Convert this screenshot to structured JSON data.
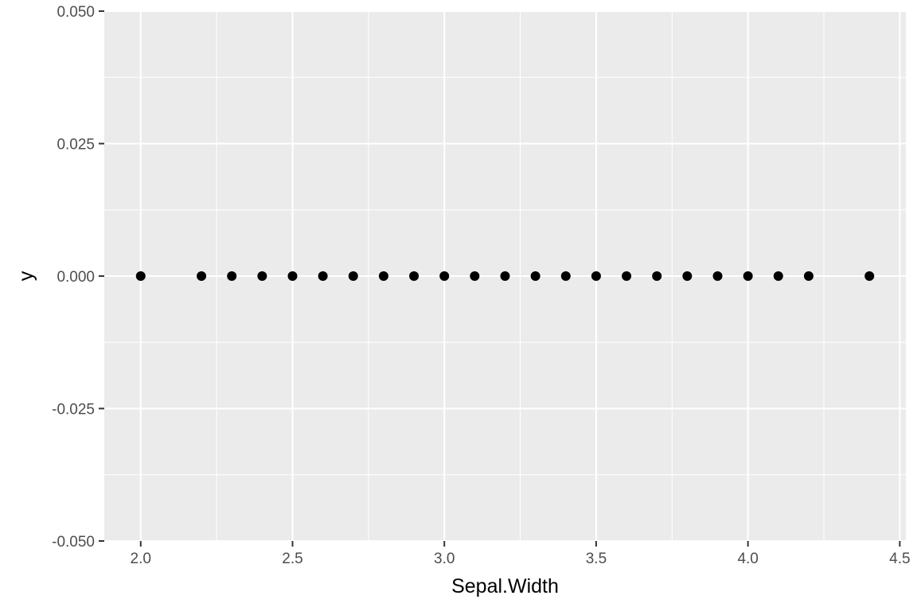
{
  "chart_data": {
    "type": "scatter",
    "xlabel": "Sepal.Width",
    "ylabel": "y",
    "xlim": [
      1.88,
      4.52
    ],
    "ylim": [
      -0.05,
      0.05
    ],
    "x_ticks": [
      2.0,
      2.5,
      3.0,
      3.5,
      4.0,
      4.5
    ],
    "x_tick_labels": [
      "2.0",
      "2.5",
      "3.0",
      "3.5",
      "4.0",
      "4.5"
    ],
    "y_ticks": [
      0.05,
      0.025,
      0.0,
      -0.025,
      -0.05
    ],
    "y_tick_labels": [
      "0.050",
      "0.025",
      "0.000",
      "-0.025",
      "-0.050"
    ],
    "points": [
      {
        "x": 2.0,
        "y": 0
      },
      {
        "x": 2.2,
        "y": 0
      },
      {
        "x": 2.3,
        "y": 0
      },
      {
        "x": 2.4,
        "y": 0
      },
      {
        "x": 2.5,
        "y": 0
      },
      {
        "x": 2.6,
        "y": 0
      },
      {
        "x": 2.7,
        "y": 0
      },
      {
        "x": 2.8,
        "y": 0
      },
      {
        "x": 2.9,
        "y": 0
      },
      {
        "x": 3.0,
        "y": 0
      },
      {
        "x": 3.1,
        "y": 0
      },
      {
        "x": 3.2,
        "y": 0
      },
      {
        "x": 3.3,
        "y": 0
      },
      {
        "x": 3.4,
        "y": 0
      },
      {
        "x": 3.5,
        "y": 0
      },
      {
        "x": 3.6,
        "y": 0
      },
      {
        "x": 3.7,
        "y": 0
      },
      {
        "x": 3.8,
        "y": 0
      },
      {
        "x": 3.9,
        "y": 0
      },
      {
        "x": 4.0,
        "y": 0
      },
      {
        "x": 4.1,
        "y": 0
      },
      {
        "x": 4.2,
        "y": 0
      },
      {
        "x": 4.4,
        "y": 0
      }
    ],
    "grid": true,
    "legend": "none",
    "colors": {
      "panel": "#ebebeb",
      "grid_major": "#ffffff",
      "point": "#000000",
      "tick": "#333333",
      "tick_label": "#4d4d4d"
    }
  }
}
